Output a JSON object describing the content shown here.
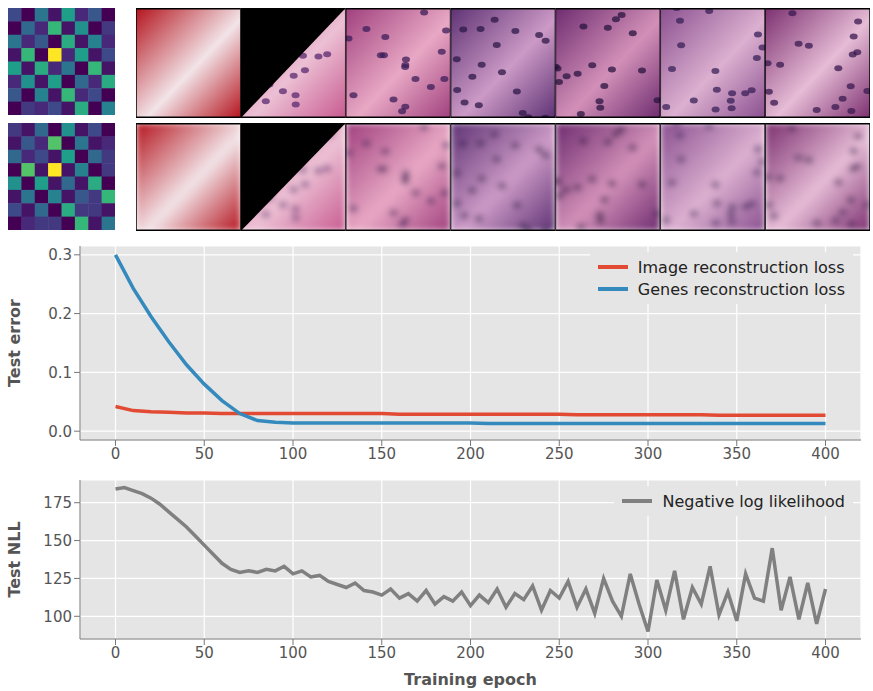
{
  "chart_data": [
    {
      "type": "line",
      "ylabel": "Test error",
      "x": [
        0,
        10,
        20,
        30,
        40,
        50,
        60,
        70,
        80,
        90,
        100,
        110,
        120,
        130,
        140,
        150,
        160,
        170,
        180,
        190,
        200,
        210,
        220,
        230,
        240,
        250,
        260,
        270,
        280,
        290,
        300,
        310,
        320,
        330,
        340,
        350,
        360,
        370,
        380,
        390,
        400
      ],
      "series": [
        {
          "name": "Image reconstruction loss",
          "color": "#E24A33",
          "values": [
            0.042,
            0.035,
            0.033,
            0.032,
            0.031,
            0.031,
            0.03,
            0.03,
            0.03,
            0.03,
            0.03,
            0.03,
            0.03,
            0.03,
            0.03,
            0.03,
            0.029,
            0.029,
            0.029,
            0.029,
            0.029,
            0.029,
            0.029,
            0.029,
            0.029,
            0.029,
            0.028,
            0.028,
            0.028,
            0.028,
            0.028,
            0.028,
            0.028,
            0.028,
            0.027,
            0.027,
            0.027,
            0.027,
            0.027,
            0.027,
            0.027
          ]
        },
        {
          "name": "Genes reconstruction loss",
          "color": "#348ABD",
          "values": [
            0.3,
            0.243,
            0.195,
            0.152,
            0.113,
            0.08,
            0.052,
            0.03,
            0.018,
            0.015,
            0.014,
            0.014,
            0.014,
            0.014,
            0.014,
            0.014,
            0.014,
            0.014,
            0.014,
            0.014,
            0.014,
            0.013,
            0.013,
            0.013,
            0.013,
            0.013,
            0.013,
            0.013,
            0.013,
            0.013,
            0.013,
            0.013,
            0.013,
            0.013,
            0.013,
            0.013,
            0.013,
            0.013,
            0.013,
            0.013,
            0.013
          ]
        }
      ],
      "xlim": [
        -20,
        420
      ],
      "xticks": [
        0,
        50,
        100,
        150,
        200,
        250,
        300,
        350,
        400
      ],
      "ylim": [
        -0.015,
        0.315
      ],
      "yticks": [
        {
          "value": 0,
          "label": "0.0"
        },
        0.1,
        0.2,
        0.3
      ],
      "grid": true,
      "legend": "upper right"
    },
    {
      "type": "line",
      "xlabel": "Training epoch",
      "ylabel": "Test NLL",
      "x": [
        0,
        5,
        10,
        15,
        20,
        25,
        30,
        35,
        40,
        45,
        50,
        55,
        60,
        65,
        70,
        75,
        80,
        85,
        90,
        95,
        100,
        105,
        110,
        115,
        120,
        125,
        130,
        135,
        140,
        145,
        150,
        155,
        160,
        165,
        170,
        175,
        180,
        185,
        190,
        195,
        200,
        205,
        210,
        215,
        220,
        225,
        230,
        235,
        240,
        245,
        250,
        255,
        260,
        265,
        270,
        275,
        280,
        285,
        290,
        295,
        300,
        305,
        310,
        315,
        320,
        325,
        330,
        335,
        340,
        345,
        350,
        355,
        360,
        365,
        370,
        375,
        380,
        385,
        390,
        395,
        400
      ],
      "series": [
        {
          "name": "Negative log likelihood",
          "color": "#808080",
          "values": [
            184,
            185,
            183,
            181,
            178,
            174,
            169,
            164,
            159,
            153,
            147,
            141,
            135,
            131,
            129,
            130,
            129,
            131,
            130,
            133,
            128,
            130,
            126,
            127,
            123,
            121,
            119,
            122,
            117,
            116,
            114,
            118,
            112,
            115,
            110,
            117,
            108,
            113,
            110,
            116,
            107,
            114,
            109,
            118,
            106,
            115,
            111,
            120,
            104,
            117,
            112,
            123,
            106,
            118,
            102,
            125,
            110,
            100,
            128,
            108,
            90,
            124,
            104,
            130,
            98,
            119,
            108,
            133,
            101,
            116,
            97,
            128,
            112,
            110,
            145,
            104,
            126,
            98,
            122,
            95,
            118
          ]
        }
      ],
      "xlim": [
        -20,
        420
      ],
      "xticks": [
        0,
        50,
        100,
        150,
        200,
        250,
        300,
        350,
        400
      ],
      "ylim": [
        85,
        190
      ],
      "yticks": [
        100,
        125,
        150,
        175
      ],
      "grid": true,
      "legend": "upper right"
    }
  ],
  "heatmaps": [
    {
      "cells": [
        [
          0.3,
          0.1,
          0.45,
          0.15,
          0.6,
          0.2,
          0.35,
          0.1
        ],
        [
          0.1,
          0.4,
          0.2,
          0.7,
          0.15,
          0.55,
          0.1,
          0.25
        ],
        [
          0.45,
          0.2,
          0.35,
          0.1,
          0.65,
          0.15,
          0.5,
          0.2
        ],
        [
          0.15,
          0.7,
          0.1,
          1.0,
          0.2,
          0.6,
          0.15,
          0.3
        ],
        [
          0.6,
          0.15,
          0.65,
          0.2,
          0.45,
          0.1,
          0.7,
          0.15
        ],
        [
          0.2,
          0.55,
          0.15,
          0.6,
          0.1,
          0.4,
          0.2,
          0.65
        ],
        [
          0.35,
          0.1,
          0.5,
          0.15,
          0.7,
          0.2,
          0.3,
          0.1
        ],
        [
          0.1,
          0.25,
          0.2,
          0.3,
          0.15,
          0.65,
          0.1,
          0.5
        ]
      ]
    },
    {
      "cells": [
        [
          0.25,
          0.15,
          0.4,
          0.1,
          0.55,
          0.15,
          0.3,
          0.1
        ],
        [
          0.15,
          0.35,
          0.2,
          0.75,
          0.1,
          0.45,
          0.15,
          0.2
        ],
        [
          0.4,
          0.2,
          0.3,
          0.15,
          0.6,
          0.1,
          0.4,
          0.25
        ],
        [
          0.1,
          0.75,
          0.15,
          1.0,
          0.15,
          0.5,
          0.1,
          0.25
        ],
        [
          0.55,
          0.1,
          0.6,
          0.15,
          0.4,
          0.15,
          0.65,
          0.1
        ],
        [
          0.15,
          0.45,
          0.1,
          0.5,
          0.15,
          0.35,
          0.25,
          0.7
        ],
        [
          0.3,
          0.15,
          0.4,
          0.1,
          0.65,
          0.25,
          0.25,
          0.15
        ],
        [
          0.1,
          0.2,
          0.25,
          0.25,
          0.1,
          0.7,
          0.15,
          0.45
        ]
      ]
    }
  ]
}
